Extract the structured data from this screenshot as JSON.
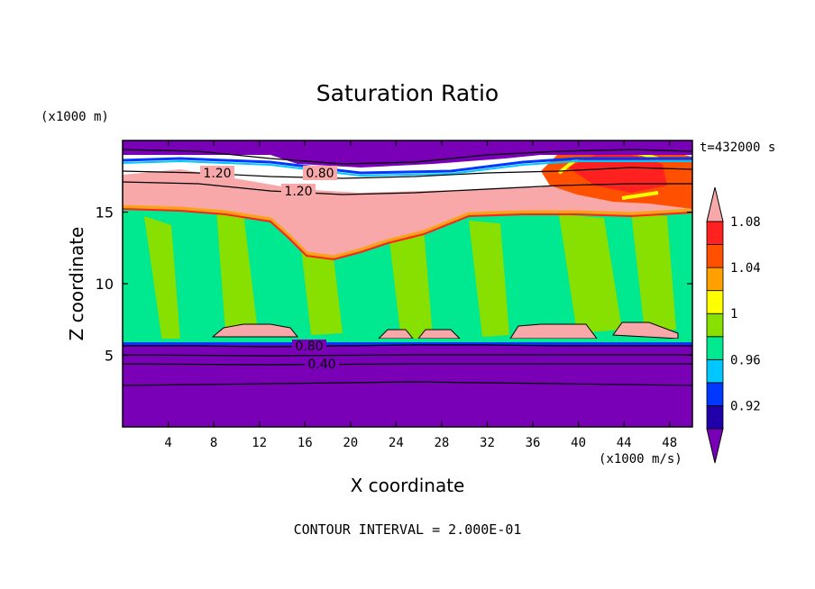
{
  "chart_data": {
    "type": "heatmap",
    "title": "Saturation Ratio",
    "xlabel": "X coordinate",
    "ylabel": "Z coordinate",
    "x_unit": "(x1000 m/s)",
    "y_unit": "(x1000 m)",
    "time_label": "t=432000 s",
    "footer": "CONTOUR INTERVAL = 2.000E-01",
    "xlim": [
      0,
      50
    ],
    "ylim": [
      0,
      20
    ],
    "x_ticks": [
      "4",
      "8",
      "12",
      "16",
      "20",
      "24",
      "28",
      "32",
      "36",
      "40",
      "44",
      "48"
    ],
    "y_ticks": [
      "5",
      "10",
      "15"
    ],
    "colorbar": {
      "labels": [
        "1.08",
        "1.04",
        "1",
        "0.96",
        "0.92"
      ],
      "levels": [
        0.92,
        0.94,
        0.96,
        0.98,
        1.0,
        1.02,
        1.04,
        1.06,
        1.08,
        1.1
      ],
      "colors": [
        "#7a00b8",
        "#2000a8",
        "#0038ff",
        "#00c8ff",
        "#00e890",
        "#88e000",
        "#ffff00",
        "#ffa000",
        "#ff5000",
        "#ff2020",
        "#f8a8a8"
      ]
    },
    "contour_labels": [
      {
        "text": "1.20",
        "x": 9,
        "y": 17.6
      },
      {
        "text": "0.80",
        "x": 18,
        "y": 17.6
      },
      {
        "text": "1.20",
        "x": 17.2,
        "y": 16.3
      },
      {
        "text": "0.80",
        "x": 15.7,
        "y": 5.5
      },
      {
        "text": "0.40",
        "x": 17.5,
        "y": 4.3
      }
    ]
  }
}
